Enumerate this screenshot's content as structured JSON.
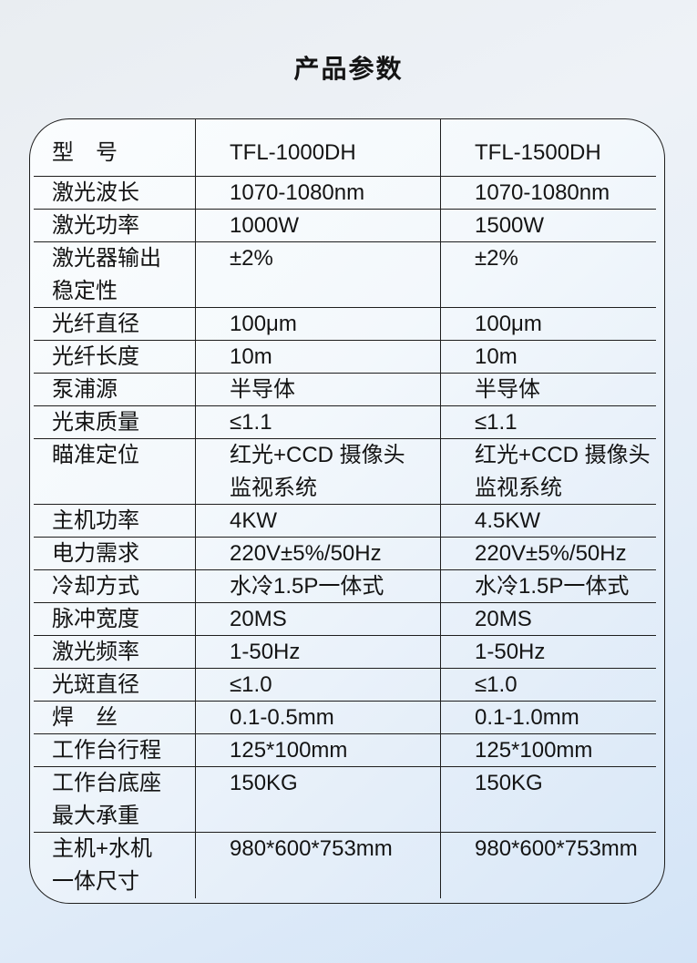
{
  "page": {
    "title": "产品参数"
  },
  "table": {
    "columns": {
      "label": "型　号",
      "col1": "TFL-1000DH",
      "col2": "TFL-1500DH"
    },
    "rows": [
      {
        "label": "激光波长",
        "col1": "1070-1080nm",
        "col2": "1070-1080nm"
      },
      {
        "label": "激光功率",
        "col1": "1000W",
        "col2": "1500W"
      },
      {
        "label": "激光器输出\n稳定性",
        "col1": "±2%",
        "col2": "±2%"
      },
      {
        "label": "光纤直径",
        "col1": "100μm",
        "col2": "100μm"
      },
      {
        "label": "光纤长度",
        "col1": "10m",
        "col2": "10m"
      },
      {
        "label": "泵浦源",
        "col1": "半导体",
        "col2": "半导体"
      },
      {
        "label": "光束质量",
        "col1": "≤1.1",
        "col2": "≤1.1"
      },
      {
        "label": "瞄准定位",
        "col1": "红光+CCD 摄像头\n监视系统",
        "col2": "红光+CCD 摄像头\n监视系统"
      },
      {
        "label": "主机功率",
        "col1": "4KW",
        "col2": "4.5KW"
      },
      {
        "label": "电力需求",
        "col1": "220V±5%/50Hz",
        "col2": "220V±5%/50Hz"
      },
      {
        "label": "冷却方式",
        "col1": "水冷1.5P一体式",
        "col2": "水冷1.5P一体式"
      },
      {
        "label": "脉冲宽度",
        "col1": "20MS",
        "col2": "20MS"
      },
      {
        "label": "激光频率",
        "col1": "1-50Hz",
        "col2": "1-50Hz"
      },
      {
        "label": "光斑直径",
        "col1": "≤1.0",
        "col2": "≤1.0"
      },
      {
        "label": "焊　丝",
        "col1": "0.1-0.5mm",
        "col2": "0.1-1.0mm"
      },
      {
        "label": "工作台行程",
        "col1": "125*100mm",
        "col2": "125*100mm"
      },
      {
        "label": "工作台底座\n最大承重",
        "col1": "150KG",
        "col2": "150KG"
      },
      {
        "label": "主机+水机\n一体尺寸",
        "col1": "980*600*753mm",
        "col2": "980*600*753mm"
      }
    ]
  },
  "colors": {
    "text": "#141414",
    "border": "#1e1e1e",
    "page_bg_top": "#e9edf1",
    "page_bg_bottom": "#d3e4f7",
    "table_bg_top": "#fbfdfe",
    "table_bg_bottom": "#d8e7f8"
  }
}
